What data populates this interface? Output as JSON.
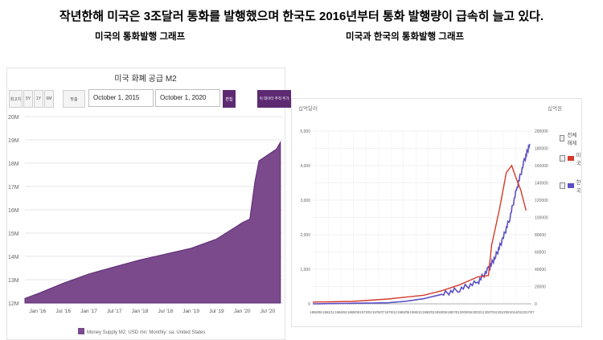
{
  "headline": "작년한해 미국은 3조달러 통화를 발행했으며 한국도 2016년부터 통화 발행량이 급속히 늘고 있다.",
  "subtitle_left": "미국의  통화발행 그래프",
  "subtitle_right": "미국과 한국의 통화발행 그래프",
  "us_panel": {
    "title": "미국 화폐 공급 M2",
    "range_buttons": [
      "최고치",
      "5Y",
      "1Y",
      "6M",
      "맞춤"
    ],
    "start_date": "October 1, 2015",
    "end_date": "October 1, 2020",
    "edit_label": "편집",
    "add_label": "이 데이터 추적 추가"
  },
  "colors": {
    "us_fill": "#7a4a8c",
    "us_button": "#5d2a72",
    "kr_line": "#5a4fc4",
    "us_line": "#d63a2b"
  },
  "chart_data": [
    {
      "type": "area",
      "title": "미국 화폐 공급 M2",
      "xlabel": "",
      "ylabel": "",
      "x_ticks": [
        "Jan '16",
        "Jul '16",
        "Jan '17",
        "Jul '17",
        "Jan '18",
        "Jul '18",
        "Jan '19",
        "Jul '19",
        "Jan '20",
        "Jul '20"
      ],
      "y_ticks": [
        "12M",
        "13M",
        "14M",
        "15M",
        "16M",
        "17M",
        "18M",
        "19M",
        "20M"
      ],
      "ylim": [
        12,
        20
      ],
      "grid": true,
      "series": [
        {
          "name": "Money Supply M2: USD mn: Monthly: sa: United States",
          "x": [
            2015.75,
            2016.0,
            2016.5,
            2017.0,
            2017.5,
            2018.0,
            2018.5,
            2019.0,
            2019.5,
            2019.9,
            2020.0,
            2020.15,
            2020.25,
            2020.33,
            2020.5,
            2020.67,
            2020.75
          ],
          "values": [
            12.2,
            12.4,
            12.85,
            13.25,
            13.55,
            13.85,
            14.1,
            14.35,
            14.75,
            15.3,
            15.45,
            15.6,
            17.2,
            18.1,
            18.35,
            18.6,
            18.9
          ]
        }
      ]
    },
    {
      "type": "line",
      "title": "",
      "left_axis_label": "십억달러",
      "right_axis_label": "십억원",
      "y_left_ticks": [
        "0",
        "1,000",
        "2,000",
        "3,000",
        "4,000",
        "5,000"
      ],
      "y_left_lim": [
        0,
        5000
      ],
      "y_right_ticks": [
        "0",
        "20000",
        "40000",
        "60000",
        "80000",
        "100000",
        "120000",
        "140000",
        "160000",
        "180000",
        "200000"
      ],
      "y_right_lim": [
        0,
        200000
      ],
      "x_ticks": [
        "1959/06",
        "1962/11",
        "1966/04",
        "1969/09",
        "1973/02",
        "1976/07",
        "1979/12",
        "1983/05",
        "1986/10",
        "1990/03",
        "1993/08",
        "1997/01",
        "2000/06",
        "2003/11",
        "2007/04",
        "2010/09",
        "2014/02",
        "2017/07"
      ],
      "xlim": [
        1959,
        2020
      ],
      "grid": true,
      "legend_labels": [
        "전체해제",
        "미국",
        "한국"
      ],
      "series": [
        {
          "name": "미국",
          "axis": "left",
          "x": [
            1959,
            1970,
            1980,
            1990,
            1995,
            2000,
            2005,
            2008,
            2008.9,
            2011,
            2013,
            2014.5,
            2015.5,
            2017,
            2018.5
          ],
          "values": [
            50,
            70,
            140,
            250,
            380,
            550,
            780,
            820,
            1700,
            2700,
            3800,
            4000,
            3700,
            3300,
            2700
          ]
        },
        {
          "name": "한국",
          "axis": "right",
          "x": [
            1959,
            1980,
            1985,
            1990,
            1995,
            2000,
            2005,
            2008,
            2010,
            2012,
            2014,
            2016,
            2018,
            2019.5
          ],
          "values": [
            0,
            1200,
            3000,
            6000,
            11000,
            17000,
            25000,
            40000,
            55000,
            75000,
            100000,
            135000,
            165000,
            185000
          ]
        }
      ]
    }
  ]
}
